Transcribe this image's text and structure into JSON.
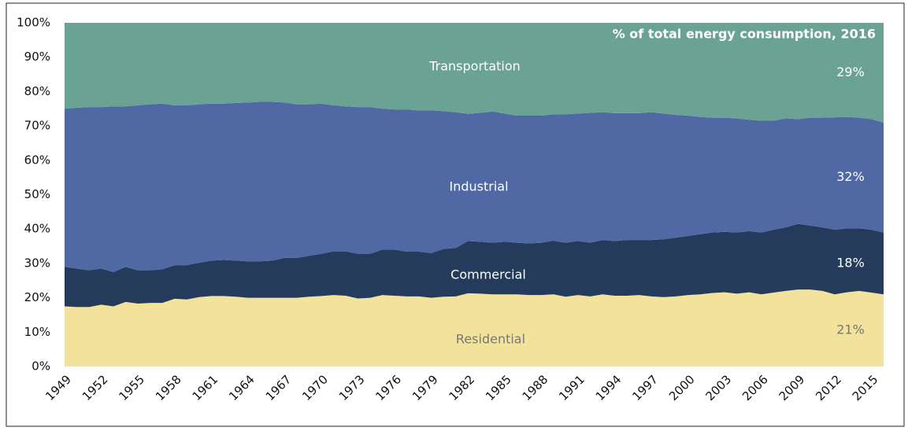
{
  "chart_data": {
    "type": "stacked_area",
    "annotation": "% of total energy consumption, 2016",
    "categories": [
      "1949",
      null,
      null,
      "1952",
      null,
      null,
      "1955",
      null,
      null,
      "1958",
      null,
      null,
      "1961",
      null,
      null,
      "1964",
      null,
      null,
      "1967",
      null,
      null,
      "1970",
      null,
      null,
      "1973",
      null,
      null,
      "1976",
      null,
      null,
      "1979",
      null,
      null,
      "1982",
      null,
      null,
      "1985",
      null,
      null,
      "1988",
      null,
      null,
      "1991",
      null,
      null,
      "1994",
      null,
      null,
      "1997",
      null,
      null,
      "2000",
      null,
      null,
      "2003",
      null,
      null,
      "2006",
      null,
      null,
      "2009",
      null,
      null,
      "2012",
      null,
      null,
      "2015",
      null
    ],
    "series": [
      {
        "name": "Residential",
        "color": "#f2e29b",
        "label_color": "#777777",
        "values": [
          17.5,
          17.3,
          17.3,
          18,
          17.5,
          18.8,
          18.3,
          18.5,
          18.5,
          19.7,
          19.5,
          20.2,
          20.5,
          20.5,
          20.3,
          20,
          20,
          20,
          20,
          20,
          20.3,
          20.5,
          20.8,
          20.6,
          19.8,
          20,
          20.8,
          20.6,
          20.4,
          20.4,
          20,
          20.3,
          20.4,
          21.3,
          21.2,
          21,
          21,
          21,
          20.8,
          20.8,
          21,
          20.3,
          20.8,
          20.4,
          21,
          20.6,
          20.6,
          20.8,
          20.4,
          20.2,
          20.4,
          20.8,
          21,
          21.4,
          21.6,
          21.2,
          21.6,
          21,
          21.5,
          22,
          22.4,
          22.4,
          22,
          21,
          21.6,
          22,
          21.5,
          21
        ],
        "value_labels": [
          null,
          null,
          null,
          null,
          null,
          null,
          null,
          null,
          null,
          null,
          null,
          null,
          null,
          null,
          null,
          null,
          null,
          null,
          null,
          null,
          null,
          null,
          null,
          null,
          null,
          null,
          null,
          null,
          null,
          null,
          null,
          null,
          null,
          null,
          null,
          null,
          null,
          null,
          null,
          null,
          null,
          null,
          null,
          null,
          null,
          null,
          null,
          null,
          null,
          null,
          null,
          null,
          null,
          null,
          null,
          null,
          null,
          null,
          null,
          null,
          null,
          null,
          null,
          null,
          null,
          null,
          null,
          "21%"
        ]
      },
      {
        "name": "Commercial",
        "color": "#243b5c",
        "label_color": "#ffffff",
        "values": [
          11.5,
          11.2,
          10.7,
          10.5,
          10,
          10.2,
          9.7,
          9.5,
          9.8,
          9.8,
          10,
          10,
          10.3,
          10.5,
          10.5,
          10.6,
          10.6,
          10.8,
          11.6,
          11.6,
          11.9,
          12.3,
          12.7,
          12.9,
          13,
          12.8,
          13.2,
          13.4,
          13,
          13,
          13,
          13.9,
          14.1,
          15.2,
          15.1,
          15,
          15.3,
          15,
          15,
          15.2,
          15.6,
          15.7,
          15.7,
          15.6,
          15.8,
          15.9,
          16.2,
          16,
          16.4,
          16.8,
          17.1,
          17.2,
          17.5,
          17.6,
          17.6,
          17.8,
          17.8,
          18,
          18.3,
          18.5,
          19.1,
          18.6,
          18.5,
          18.8,
          18.6,
          18.2,
          18.3,
          18
        ],
        "value_labels": [
          null,
          null,
          null,
          null,
          null,
          null,
          null,
          null,
          null,
          null,
          null,
          null,
          null,
          null,
          null,
          null,
          null,
          null,
          null,
          null,
          null,
          null,
          null,
          null,
          null,
          null,
          null,
          null,
          null,
          null,
          null,
          null,
          null,
          null,
          null,
          null,
          null,
          null,
          null,
          null,
          null,
          null,
          null,
          null,
          null,
          null,
          null,
          null,
          null,
          null,
          null,
          null,
          null,
          null,
          null,
          null,
          null,
          null,
          null,
          null,
          null,
          null,
          null,
          null,
          null,
          null,
          null,
          "18%"
        ]
      },
      {
        "name": "Industrial",
        "color": "#5069a4",
        "label_color": "#ffffff",
        "values": [
          46,
          46.8,
          47.5,
          47,
          48.2,
          46.7,
          48,
          48.3,
          48.2,
          46.5,
          46.5,
          46.1,
          45.7,
          45.5,
          45.9,
          46.2,
          46.4,
          46.2,
          45.2,
          44.7,
          44.1,
          43.7,
          42.5,
          42.2,
          42.7,
          42.7,
          41,
          40.8,
          41.4,
          41.1,
          41.5,
          40.1,
          39.5,
          37,
          37.5,
          38.2,
          37.3,
          37,
          37.2,
          37,
          36.8,
          37.4,
          37.1,
          37.8,
          37.2,
          37.2,
          36.9,
          36.9,
          37.2,
          36.6,
          35.7,
          35,
          34.1,
          33.4,
          33.2,
          33.2,
          32.4,
          32.5,
          31.7,
          31.7,
          30.5,
          31.4,
          31.9,
          32.7,
          32.4,
          32.2,
          32.2,
          32
        ],
        "value_labels": [
          null,
          null,
          null,
          null,
          null,
          null,
          null,
          null,
          null,
          null,
          null,
          null,
          null,
          null,
          null,
          null,
          null,
          null,
          null,
          null,
          null,
          null,
          null,
          null,
          null,
          null,
          null,
          null,
          null,
          null,
          null,
          null,
          null,
          null,
          null,
          null,
          null,
          null,
          null,
          null,
          null,
          null,
          null,
          null,
          null,
          null,
          null,
          null,
          null,
          null,
          null,
          null,
          null,
          null,
          null,
          null,
          null,
          null,
          null,
          null,
          null,
          null,
          null,
          null,
          null,
          null,
          null,
          "32%"
        ]
      },
      {
        "name": "Transportation",
        "color": "#6aa394",
        "label_color": "#ffffff",
        "values": [
          25,
          24.7,
          24.5,
          24.5,
          24.3,
          24.3,
          24,
          23.7,
          23.5,
          24,
          24,
          23.7,
          23.5,
          23.5,
          23.3,
          23.2,
          23,
          23,
          23.2,
          23.7,
          23.7,
          23.5,
          24,
          24.3,
          24.5,
          24.5,
          25,
          25.2,
          25.2,
          25.5,
          25.5,
          25.7,
          26,
          26.5,
          26.2,
          25.8,
          26.4,
          27,
          27,
          27,
          26.6,
          26.6,
          26.4,
          26.2,
          26,
          26.3,
          26.3,
          26.3,
          26,
          26.4,
          26.8,
          27,
          27.4,
          27.6,
          27.6,
          27.8,
          28.2,
          28.5,
          28.5,
          27.8,
          28,
          27.6,
          27.6,
          27.5,
          27.4,
          27.6,
          28,
          29
        ],
        "value_labels": [
          null,
          null,
          null,
          null,
          null,
          null,
          null,
          null,
          null,
          null,
          null,
          null,
          null,
          null,
          null,
          null,
          null,
          null,
          null,
          null,
          null,
          null,
          null,
          null,
          null,
          null,
          null,
          null,
          null,
          null,
          null,
          null,
          null,
          null,
          null,
          null,
          null,
          null,
          null,
          null,
          null,
          null,
          null,
          null,
          null,
          null,
          null,
          null,
          null,
          null,
          null,
          null,
          null,
          null,
          null,
          null,
          null,
          null,
          null,
          null,
          null,
          null,
          null,
          null,
          null,
          null,
          null,
          "29%"
        ]
      }
    ],
    "ylim": [
      0,
      100
    ],
    "yticks": [
      {
        "value": 0,
        "label": "0%"
      },
      {
        "value": 10,
        "label": "10%"
      },
      {
        "value": 20,
        "label": "20%"
      },
      {
        "value": 30,
        "label": "30%"
      },
      {
        "value": 40,
        "label": "40%"
      },
      {
        "value": 50,
        "label": "50%"
      },
      {
        "value": 60,
        "label": "60%"
      },
      {
        "value": 70,
        "label": "70%"
      },
      {
        "value": 80,
        "label": "80%"
      },
      {
        "value": 90,
        "label": "90%"
      },
      {
        "value": 100,
        "label": "100%"
      }
    ],
    "grid": false
  }
}
